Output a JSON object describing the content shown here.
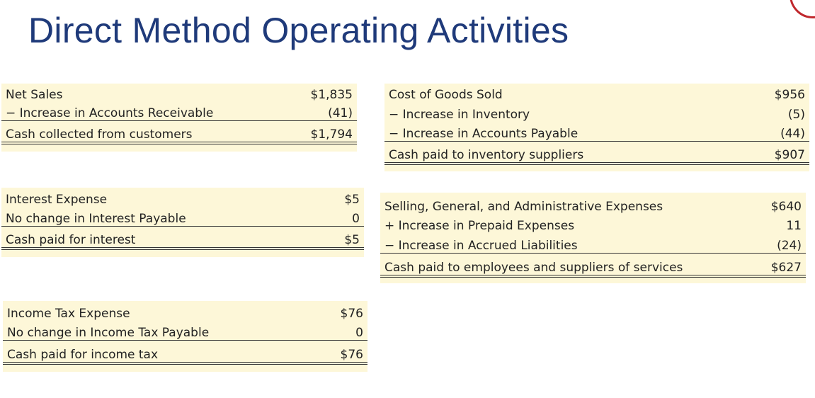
{
  "title": "Direct Method Operating Activities",
  "schedules": {
    "customers": {
      "rows": [
        {
          "label": "Net Sales",
          "amount": "$1,835"
        },
        {
          "label": "− Increase in Accounts Receivable",
          "amount": "(41)"
        },
        {
          "label": "Cash collected from customers",
          "amount": "$1,794"
        }
      ]
    },
    "inventory": {
      "rows": [
        {
          "label": "Cost of Goods Sold",
          "amount": "$956"
        },
        {
          "label": "− Increase in Inventory",
          "amount": "(5)"
        },
        {
          "label": "− Increase in Accounts Payable",
          "amount": "(44)"
        },
        {
          "label": "Cash paid to inventory suppliers",
          "amount": "$907"
        }
      ]
    },
    "interest": {
      "rows": [
        {
          "label": "Interest Expense",
          "amount": "$5"
        },
        {
          "label": "No change in Interest Payable",
          "amount": "0"
        },
        {
          "label": "Cash paid for interest",
          "amount": "$5"
        }
      ]
    },
    "sga": {
      "rows": [
        {
          "label": "Selling, General, and Administrative Expenses",
          "amount": "$640"
        },
        {
          "label": "+ Increase in Prepaid Expenses",
          "amount": "11"
        },
        {
          "label": "− Increase in Accrued Liabilities",
          "amount": "(24)"
        },
        {
          "label": "Cash paid to employees and suppliers of services",
          "amount": "$627"
        }
      ]
    },
    "income_tax": {
      "rows": [
        {
          "label": "Income Tax Expense",
          "amount": "$76"
        },
        {
          "label": "No change in Income Tax Payable",
          "amount": "0"
        },
        {
          "label": "Cash paid for income tax",
          "amount": "$76"
        }
      ]
    }
  }
}
